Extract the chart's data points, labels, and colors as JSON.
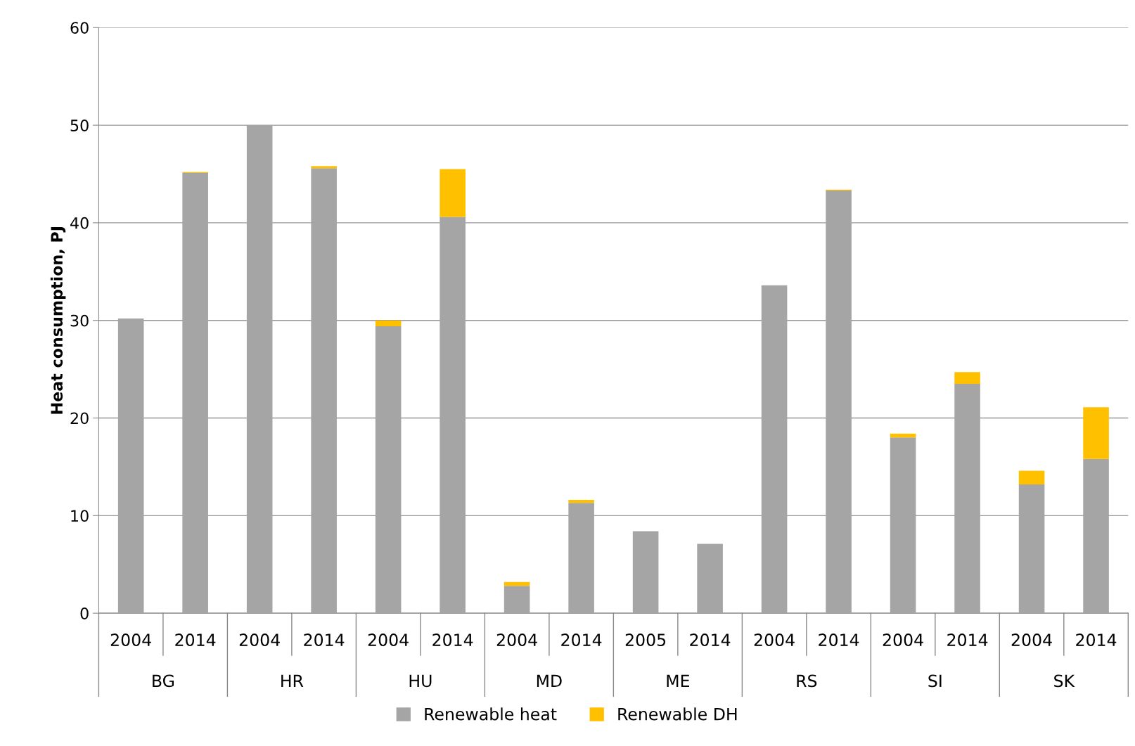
{
  "chart_data": {
    "type": "bar",
    "stacked": true,
    "ylabel": "Heat consumption, PJ",
    "categories": [
      "2004",
      "2014",
      "2004",
      "2014",
      "2004",
      "2014",
      "2004",
      "2014",
      "2005",
      "2014",
      "2004",
      "2014",
      "2004",
      "2014",
      "2004",
      "2014"
    ],
    "annotations": [
      "BG",
      "HR",
      "HU",
      "MD",
      "ME",
      "RS",
      "SI",
      "SK"
    ],
    "series": [
      {
        "name": "Renewable heat",
        "color": "#a5a5a5",
        "values": [
          30.2,
          45.1,
          50.0,
          45.6,
          29.4,
          40.6,
          2.8,
          11.3,
          8.4,
          7.1,
          33.6,
          43.3,
          18.0,
          23.5,
          13.2,
          15.8
        ]
      },
      {
        "name": "Renewable DH",
        "color": "#ffc000",
        "values": [
          0,
          0.1,
          0,
          0.2,
          0.6,
          4.9,
          0.4,
          0.3,
          0,
          0,
          0,
          0.1,
          0.4,
          1.2,
          1.4,
          5.3
        ]
      }
    ],
    "ylim": [
      0,
      60
    ],
    "yticks": [
      0,
      10,
      20,
      30,
      40,
      50,
      60
    ],
    "grid": "y",
    "legend": "bottom"
  }
}
